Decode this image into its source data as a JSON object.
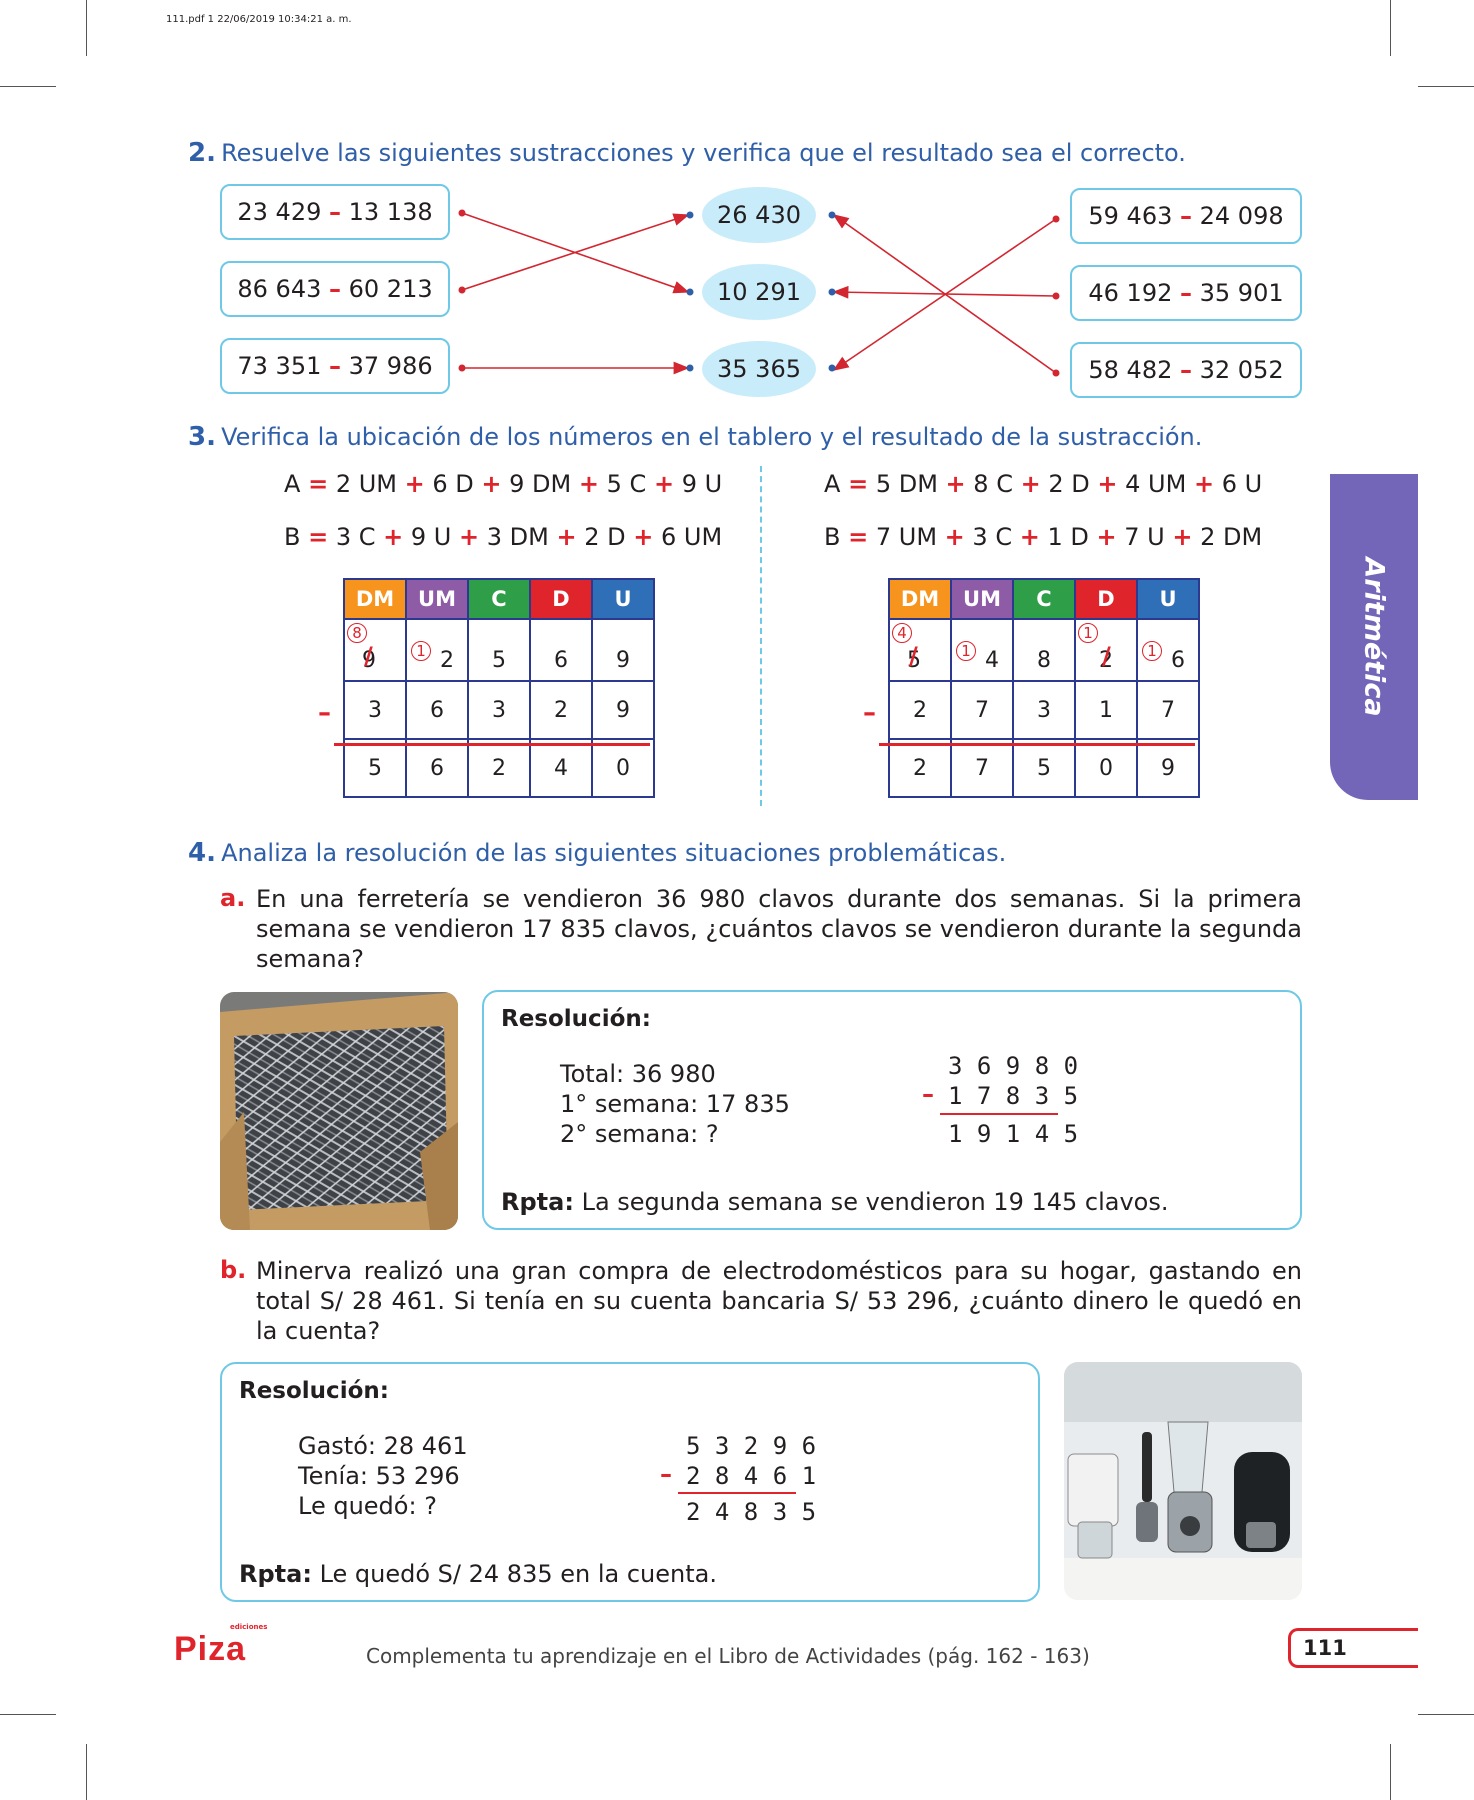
{
  "header": {
    "file_stamp": "111.pdf   1   22/06/2019   10:34:21 a. m."
  },
  "q2": {
    "number": "2.",
    "text": "Resuelve las siguientes sustracciones y verifica que el resultado sea el correcto.",
    "left_ops": [
      {
        "a": "23 429",
        "op": "–",
        "b": "13 138"
      },
      {
        "a": "86 643",
        "op": "–",
        "b": "60 213"
      },
      {
        "a": "73 351",
        "op": "–",
        "b": "37 986"
      }
    ],
    "results": [
      "26 430",
      "10 291",
      "35 365"
    ],
    "right_ops": [
      {
        "a": "59 463",
        "op": "–",
        "b": "24 098"
      },
      {
        "a": "46 192",
        "op": "–",
        "b": "35 901"
      },
      {
        "a": "58 482",
        "op": "–",
        "b": "32 052"
      }
    ]
  },
  "q3": {
    "number": "3.",
    "text": "Verifica la ubicación de los números en el tablero y el resultado de la sustracción.",
    "left": {
      "a": [
        "A",
        "=",
        "2 UM",
        "+",
        "6 D",
        "+",
        "9 DM",
        "+",
        "5 C",
        "+",
        "9 U"
      ],
      "b": [
        "B",
        "=",
        "3 C",
        "+",
        "9 U",
        "+",
        "3 DM",
        "+",
        "2 D",
        "+",
        "6 UM"
      ],
      "headers": [
        "DM",
        "UM",
        "C",
        "D",
        "U"
      ],
      "row1": [
        "9",
        "2",
        "5",
        "6",
        "9"
      ],
      "row1_marks": [
        "8",
        "1",
        "",
        "",
        ""
      ],
      "row2": [
        "3",
        "6",
        "3",
        "2",
        "9"
      ],
      "row3": [
        "5",
        "6",
        "2",
        "4",
        "0"
      ],
      "minus": "–"
    },
    "right": {
      "a": [
        "A",
        "=",
        "5 DM",
        "+",
        "8 C",
        "+",
        "2 D",
        "+",
        "4 UM",
        "+",
        "6 U"
      ],
      "b": [
        "B",
        "=",
        "7 UM",
        "+",
        "3 C",
        "+",
        "1 D",
        "+",
        "7 U",
        "+",
        "2 DM"
      ],
      "headers": [
        "DM",
        "UM",
        "C",
        "D",
        "U"
      ],
      "row1": [
        "5",
        "4",
        "8",
        "2",
        "6"
      ],
      "row1_marks": [
        "4",
        "1",
        "",
        "1",
        "1"
      ],
      "row2": [
        "2",
        "7",
        "3",
        "1",
        "7"
      ],
      "row3": [
        "2",
        "7",
        "5",
        "0",
        "9"
      ],
      "minus": "–"
    },
    "header_colors": [
      "#f7941d",
      "#8e5ba6",
      "#2e9e48",
      "#e0242c",
      "#2f6fb7"
    ]
  },
  "side_tab": {
    "label": "Aritmética",
    "color": "#7366b8"
  },
  "q4": {
    "number": "4.",
    "text": "Analiza la resolución de las siguientes situaciones problemáticas.",
    "a": {
      "letter": "a.",
      "text": "En una ferretería se vendieron 36 980 clavos durante dos semanas. Si la primera semana se vendieron 17 835 clavos, ¿cuántos clavos se vendieron durante la segunda semana?",
      "title": "Resolución:",
      "lines": [
        "Total: 36 980",
        "1° semana: 17 835",
        "2° semana: ?"
      ],
      "sub_top": "3 6 9 8 0",
      "sub_minus": "–",
      "sub_mid": "1 7 8 3 5",
      "sub_res": "1 9 1 4 5",
      "answer_label": "Rpta:",
      "answer": "La segunda semana se vendieron 19 145 clavos."
    },
    "b": {
      "letter": "b.",
      "text": "Minerva realizó una gran compra de electrodomésticos para su hogar, gastando en total S/ 28 461. Si tenía en su cuenta bancaria S/ 53 296, ¿cuánto dinero le quedó en la cuenta?",
      "title": "Resolución:",
      "lines": [
        "Gastó: 28 461",
        "Tenía: 53 296",
        "Le quedó: ?"
      ],
      "sub_top": "5 3 2 9 6",
      "sub_minus": "–",
      "sub_mid": "2 8 4 6 1",
      "sub_res": "2 4 8 3 5",
      "answer_label": "Rpta:",
      "answer": "Le quedó S/ 24 835 en la cuenta."
    }
  },
  "footer": {
    "logo": "Piza",
    "logo_small": "ediciones",
    "note": "Complementa tu aprendizaje en el Libro de Actividades (pág. 162 - 163)",
    "page": "111"
  },
  "colors": {
    "accent_blue": "#2f5fa8",
    "red": "#e0242c",
    "light_blue": "#6fc9e6"
  }
}
